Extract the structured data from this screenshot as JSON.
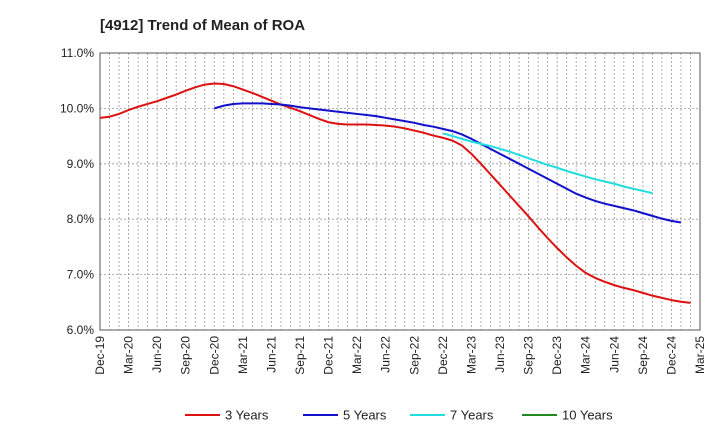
{
  "chart_data": {
    "type": "line",
    "title": "[4912]  Trend of Mean of ROA",
    "xlabel": "",
    "ylabel": "",
    "ylim": [
      6.0,
      11.0
    ],
    "yticks": [
      "6.0%",
      "7.0%",
      "8.0%",
      "9.0%",
      "10.0%",
      "11.0%"
    ],
    "ytick_values": [
      6.0,
      7.0,
      8.0,
      9.0,
      10.0,
      11.0
    ],
    "x_tick_labels": [
      "Dec-19",
      "Mar-20",
      "Jun-20",
      "Sep-20",
      "Dec-20",
      "Mar-21",
      "Jun-21",
      "Sep-21",
      "Dec-21",
      "Mar-22",
      "Jun-22",
      "Sep-22",
      "Dec-22",
      "Mar-23",
      "Jun-23",
      "Sep-23",
      "Dec-23",
      "Mar-24",
      "Jun-24",
      "Sep-24",
      "Dec-24",
      "Mar-25"
    ],
    "x_months_start": "Dec-19",
    "x_months_end": "Mar-25",
    "grid": true,
    "legend_position": "bottom",
    "series": [
      {
        "name": "3 Years",
        "color": "#dd1111",
        "start_index": 0,
        "values": [
          9.83,
          9.85,
          9.9,
          9.97,
          10.03,
          10.08,
          10.13,
          10.19,
          10.25,
          10.32,
          10.38,
          10.43,
          10.45,
          10.44,
          10.4,
          10.34,
          10.28,
          10.21,
          10.14,
          10.07,
          10.01,
          9.95,
          9.88,
          9.81,
          9.75,
          9.72,
          9.71,
          9.71,
          9.71,
          9.7,
          9.69,
          9.67,
          9.64,
          9.6,
          9.56,
          9.51,
          9.47,
          9.42,
          9.33,
          9.18,
          9.0,
          8.81,
          8.62,
          8.43,
          8.24,
          8.05,
          7.85,
          7.66,
          7.48,
          7.31,
          7.16,
          7.03,
          6.94,
          6.87,
          6.81,
          6.76,
          6.72,
          6.67,
          6.62,
          6.58,
          6.54,
          6.51,
          6.49
        ]
      },
      {
        "name": "5 Years",
        "color": "#1111cc",
        "start_index": 12,
        "values": [
          10.0,
          10.05,
          10.08,
          10.09,
          10.09,
          10.09,
          10.08,
          10.07,
          10.05,
          10.02,
          10.0,
          9.98,
          9.96,
          9.94,
          9.92,
          9.9,
          9.88,
          9.86,
          9.83,
          9.8,
          9.77,
          9.74,
          9.7,
          9.67,
          9.63,
          9.59,
          9.53,
          9.45,
          9.36,
          9.27,
          9.18,
          9.09,
          9.0,
          8.91,
          8.82,
          8.73,
          8.64,
          8.55,
          8.46,
          8.39,
          8.33,
          8.28,
          8.24,
          8.2,
          8.16,
          8.11,
          8.06,
          8.01,
          7.97,
          7.94
        ]
      },
      {
        "name": "7 Years",
        "color": "#22dddd",
        "start_index": 36,
        "values": [
          9.55,
          9.5,
          9.45,
          9.4,
          9.36,
          9.32,
          9.27,
          9.22,
          9.16,
          9.1,
          9.04,
          8.98,
          8.93,
          8.87,
          8.82,
          8.77,
          8.72,
          8.68,
          8.64,
          8.59,
          8.55,
          8.51,
          8.47
        ]
      },
      {
        "name": "10 Years",
        "color": "#228822",
        "start_index": 63,
        "values": []
      }
    ]
  }
}
